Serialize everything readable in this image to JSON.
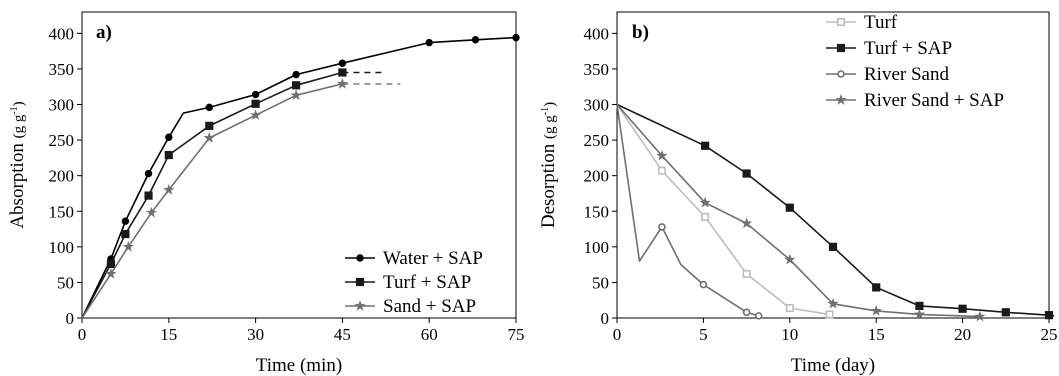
{
  "chart_data": [
    {
      "type": "line",
      "panel_label": "a)",
      "xlabel": "Time (min)",
      "ylabel_main": "Absorption ",
      "ylabel_unit": "(g g",
      "ylabel_sup": "-1",
      "ylabel_close": ")",
      "xlim": [
        0,
        75
      ],
      "ylim": [
        0,
        430
      ],
      "xticks": [
        0,
        15,
        30,
        45,
        60,
        75
      ],
      "yticks": [
        0,
        50,
        100,
        150,
        200,
        250,
        300,
        350,
        400
      ],
      "legend_position": "bottom-right",
      "series": [
        {
          "name": "Water + SAP",
          "marker": "circle",
          "color": "#000000",
          "x": [
            0,
            5,
            7.5,
            11.5,
            15,
            17.5,
            22,
            30,
            37,
            45,
            60,
            68,
            75
          ],
          "y": [
            0,
            83,
            136,
            203,
            254,
            288,
            296,
            314,
            342,
            358,
            387,
            391,
            394
          ],
          "marker_x": [
            5,
            7.5,
            11.5,
            15,
            22,
            30,
            37,
            45,
            60,
            68,
            75
          ],
          "marker_y": [
            83,
            136,
            203,
            254,
            296,
            314,
            342,
            358,
            387,
            391,
            394
          ]
        },
        {
          "name": "Turf + SAP",
          "marker": "square",
          "color": "#1a1a1a",
          "x": [
            0,
            5,
            7.5,
            11.5,
            15,
            22,
            30,
            37,
            45
          ],
          "y": [
            0,
            76,
            118,
            172,
            229,
            270,
            301,
            327,
            345
          ],
          "marker_x": [
            5,
            7.5,
            11.5,
            15,
            22,
            30,
            37,
            45
          ],
          "marker_y": [
            76,
            118,
            172,
            229,
            270,
            301,
            327,
            345
          ],
          "dashed_x": [
            45,
            52
          ],
          "dashed_y": [
            345,
            345
          ]
        },
        {
          "name": "Sand + SAP",
          "marker": "star",
          "color": "#707070",
          "x": [
            0,
            5,
            8,
            12,
            15,
            22,
            30,
            37,
            45
          ],
          "y": [
            0,
            62,
            100,
            148,
            180,
            253,
            285,
            313,
            329
          ],
          "marker_x": [
            5,
            8,
            12,
            15,
            22,
            30,
            37,
            45
          ],
          "marker_y": [
            62,
            100,
            148,
            180,
            253,
            285,
            313,
            329
          ],
          "dashed_x": [
            45,
            55
          ],
          "dashed_y": [
            329,
            329
          ]
        }
      ]
    },
    {
      "type": "line",
      "panel_label": "b)",
      "xlabel": "Time (day)",
      "ylabel_main": "Desorption ",
      "ylabel_unit": "(g g",
      "ylabel_sup": "-1",
      "ylabel_close": ")",
      "xlim": [
        0,
        25
      ],
      "ylim": [
        0,
        430
      ],
      "xticks": [
        0,
        5,
        10,
        15,
        20,
        25
      ],
      "yticks": [
        0,
        50,
        100,
        150,
        200,
        250,
        300,
        350,
        400
      ],
      "legend_position": "top-right",
      "series": [
        {
          "name": "Turf",
          "marker": "open-square",
          "color": "#bdbdbd",
          "x": [
            0,
            2.6,
            5.1,
            7.5,
            10,
            12.3
          ],
          "y": [
            300,
            207,
            142,
            62,
            14,
            5
          ],
          "marker_x": [
            2.6,
            5.1,
            7.5,
            10,
            12.3
          ],
          "marker_y": [
            207,
            142,
            62,
            14,
            5
          ]
        },
        {
          "name": "Turf + SAP",
          "marker": "square",
          "color": "#1a1a1a",
          "x": [
            0,
            5.1,
            7.5,
            10,
            12.5,
            15,
            17.5,
            20,
            22.5,
            25
          ],
          "y": [
            300,
            242,
            203,
            155,
            100,
            43,
            17,
            13,
            8,
            4
          ],
          "marker_x": [
            5.1,
            7.5,
            10,
            12.5,
            15,
            17.5,
            20,
            22.5,
            25
          ],
          "marker_y": [
            242,
            203,
            155,
            100,
            43,
            17,
            13,
            8,
            4
          ],
          "dashed_x": [
            25,
            25.3
          ],
          "dashed_y": [
            4,
            3
          ]
        },
        {
          "name": "River Sand",
          "marker": "open-circle",
          "color": "#707070",
          "x": [
            0,
            1.3,
            2.6,
            3.7,
            5,
            7.5,
            8.2
          ],
          "y": [
            300,
            80,
            128,
            75,
            47,
            8,
            3
          ],
          "marker_x": [
            2.6,
            5,
            7.5,
            8.2
          ],
          "marker_y": [
            128,
            47,
            8,
            3
          ]
        },
        {
          "name": "River Sand + SAP",
          "marker": "star",
          "color": "#707070",
          "x": [
            0,
            2.6,
            5.1,
            7.5,
            10,
            12.5,
            15,
            17.5,
            21
          ],
          "y": [
            300,
            228,
            162,
            133,
            82,
            20,
            10,
            5,
            2
          ],
          "marker_x": [
            2.6,
            5.1,
            7.5,
            10,
            12.5,
            15,
            17.5,
            21
          ],
          "marker_y": [
            228,
            162,
            133,
            82,
            20,
            10,
            5,
            2
          ]
        }
      ]
    }
  ]
}
